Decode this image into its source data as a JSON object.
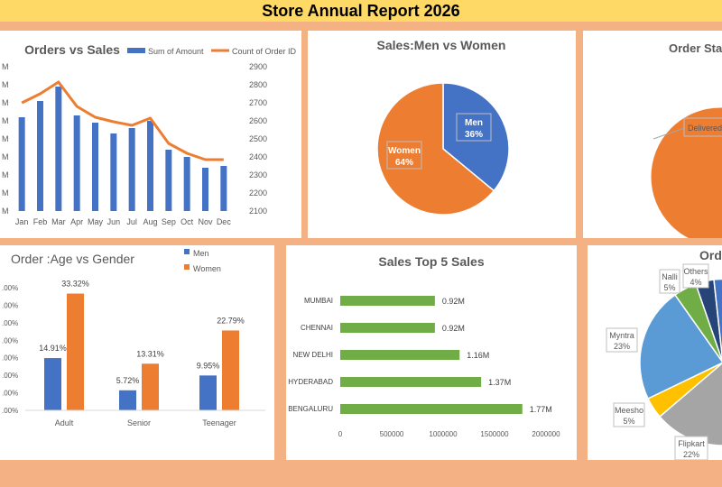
{
  "page": {
    "title": "Store Annual Report 2026"
  },
  "colors": {
    "blue": "#4472c4",
    "orange": "#ed7d31",
    "green": "#70ad47",
    "gray": "#a5a5a5",
    "yellow": "#ffc000",
    "lightblue": "#5b9bd5",
    "darkgreen": "#548235",
    "navy": "#264478",
    "background": "#f4b183",
    "titlebar": "#ffd966"
  },
  "orders_vs_sales": {
    "title": "Orders vs Sales",
    "legend": {
      "bar": "Sum of Amount",
      "line": "Count of Order ID"
    },
    "left_axis_labels": [
      "M",
      "M",
      "M",
      "M",
      "M",
      "M",
      "M",
      "M",
      "M"
    ],
    "right_axis_labels": [
      "2900",
      "2800",
      "2700",
      "2600",
      "2500",
      "2400",
      "2300",
      "2200",
      "2100"
    ],
    "chart_data": {
      "type": "bar",
      "categories": [
        "Jan",
        "Feb",
        "Mar",
        "Apr",
        "May",
        "Jun",
        "Jul",
        "Aug",
        "Sep",
        "Oct",
        "Nov",
        "Dec"
      ],
      "series": [
        {
          "name": "Sum of Amount",
          "type": "bar",
          "values": [
            0.52,
            0.61,
            0.69,
            0.53,
            0.49,
            0.43,
            0.46,
            0.5,
            0.34,
            0.3,
            0.24,
            0.25
          ]
        },
        {
          "name": "Count of Order ID",
          "type": "line",
          "values": [
            2700,
            2750,
            2815,
            2680,
            2620,
            2595,
            2575,
            2615,
            2475,
            2420,
            2385,
            2385
          ]
        }
      ],
      "ylim_right": [
        2100,
        2900
      ]
    }
  },
  "men_vs_women": {
    "title": "Sales:Men vs Women",
    "chart_data": {
      "type": "pie",
      "categories": [
        "Men",
        "Women"
      ],
      "values": [
        36,
        64
      ],
      "labels": [
        "36%",
        "64%"
      ]
    }
  },
  "order_status": {
    "title": "Order Status",
    "label": "Delivered"
  },
  "age_vs_gender": {
    "title": "Order :Age vs Gender",
    "legend": [
      "Men",
      "Women"
    ],
    "y_tick_labels": [
      ".00%",
      ".00%",
      ".00%",
      ".00%",
      ".00%",
      ".00%",
      ".00%",
      ".00%"
    ],
    "chart_data": {
      "type": "bar",
      "categories": [
        "Adult",
        "Senior",
        "Teenager"
      ],
      "series": [
        {
          "name": "Men",
          "values": [
            14.91,
            5.72,
            9.95
          ],
          "labels": [
            "14.91%",
            "5.72%",
            "9.95%"
          ]
        },
        {
          "name": "Women",
          "values": [
            33.32,
            13.31,
            22.79
          ],
          "labels": [
            "33.32%",
            "13.31%",
            "22.79%"
          ]
        }
      ],
      "ylim": [
        0,
        35
      ]
    }
  },
  "top5_sales": {
    "title": "Sales Top 5 Sales",
    "chart_data": {
      "type": "bar",
      "orientation": "horizontal",
      "categories": [
        "MUMBAI",
        "CHENNAI",
        "NEW DELHI",
        "HYDERABAD",
        "BENGALURU"
      ],
      "values": [
        920000,
        920000,
        1160000,
        1370000,
        1770000
      ],
      "labels": [
        "0.92M",
        "0.92M",
        "1.16M",
        "1.37M",
        "1.77M"
      ],
      "x_ticks": [
        "0",
        "500000",
        "1000000",
        "1500000",
        "2000000"
      ],
      "xlim": [
        0,
        2000000
      ]
    }
  },
  "orders_by_channel": {
    "title": "Ord",
    "chart_data": {
      "type": "pie",
      "visible_slices": [
        {
          "name": "Nalli",
          "label": "5%",
          "value": 5
        },
        {
          "name": "Others",
          "label": "4%",
          "value": 4
        },
        {
          "name": "Myntra",
          "label": "23%",
          "value": 23
        },
        {
          "name": "Meesho",
          "label": "5%",
          "value": 5
        },
        {
          "name": "Flipkart",
          "label": "22%",
          "value": 22
        }
      ]
    }
  }
}
